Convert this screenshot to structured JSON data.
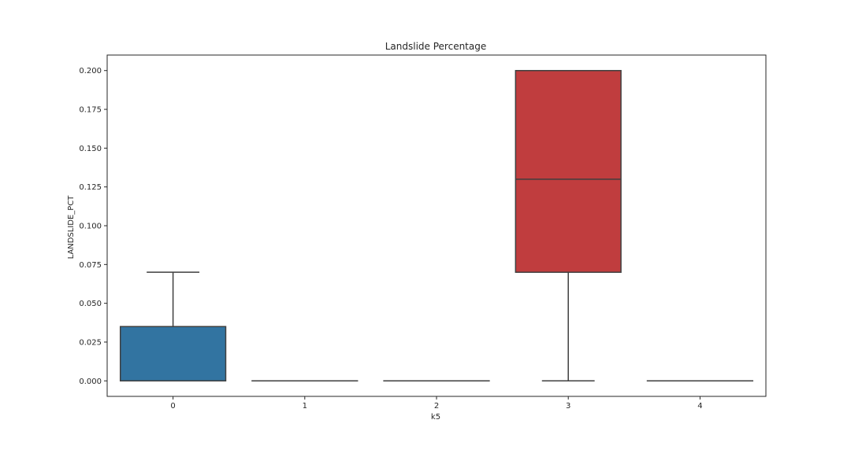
{
  "chart_data": {
    "type": "box",
    "title": "Landslide Percentage",
    "xlabel": "k5",
    "ylabel": "LANDSLIDE_PCT",
    "categories": [
      "0",
      "1",
      "2",
      "3",
      "4"
    ],
    "ylim": [
      -0.01,
      0.21
    ],
    "yticks": [
      "0.000",
      "0.025",
      "0.050",
      "0.075",
      "0.100",
      "0.125",
      "0.150",
      "0.175",
      "0.200"
    ],
    "ytick_values": [
      0,
      0.025,
      0.05,
      0.075,
      0.1,
      0.125,
      0.15,
      0.175,
      0.2
    ],
    "grid": false,
    "boxes": [
      {
        "category": "0",
        "whisker_low": 0.0,
        "q1": 0.0,
        "median": 0.0,
        "q3": 0.035,
        "whisker_high": 0.07,
        "color": "#3274a1"
      },
      {
        "category": "1",
        "whisker_low": 0.0,
        "q1": 0.0,
        "median": 0.0,
        "q3": 0.0,
        "whisker_high": 0.0,
        "color": "#e1812c"
      },
      {
        "category": "2",
        "whisker_low": 0.0,
        "q1": 0.0,
        "median": 0.0,
        "q3": 0.0,
        "whisker_high": 0.0,
        "color": "#3a923a"
      },
      {
        "category": "3",
        "whisker_low": 0.0,
        "q1": 0.07,
        "median": 0.13,
        "q3": 0.2,
        "whisker_high": 0.2,
        "color": "#c03d3e"
      },
      {
        "category": "4",
        "whisker_low": 0.0,
        "q1": 0.0,
        "median": 0.0,
        "q3": 0.0,
        "whisker_high": 0.0,
        "color": "#9372b2"
      }
    ]
  }
}
